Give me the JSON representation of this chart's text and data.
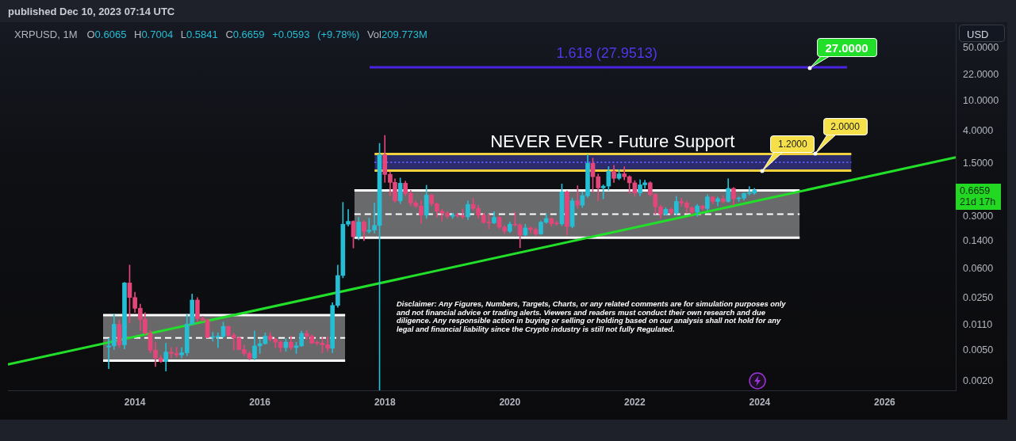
{
  "chart_data": {
    "type": "candlestick",
    "title": "XRPUSD, 1M",
    "subtitle": "published Dec 10, 2023 07:14 UTC",
    "ylabel": "USD",
    "log": true,
    "xlim": [
      "2011-12-20",
      "2027-02-20"
    ],
    "xticks": [
      "2014",
      "2016",
      "2018",
      "2020",
      "2022",
      "2024",
      "2026"
    ],
    "ylim": [
      0.0015,
      105
    ],
    "yticks": [
      {
        "value": 0.002,
        "label": "0.0020"
      },
      {
        "value": 0.005,
        "label": "0.0050"
      },
      {
        "value": 0.011,
        "label": "0.0110"
      },
      {
        "value": 0.025,
        "label": "0.0250"
      },
      {
        "value": 0.06,
        "label": "0.0600"
      },
      {
        "value": 0.14,
        "label": "0.1400"
      },
      {
        "value": 0.3,
        "label": "0.3000"
      },
      {
        "value": 1.5,
        "label": "1.5000"
      },
      {
        "value": 4,
        "label": "4.0000"
      },
      {
        "value": 10,
        "label": "10.0000"
      },
      {
        "value": 22,
        "label": "22.0000"
      },
      {
        "value": 50,
        "label": "50.0000"
      }
    ],
    "series": [
      {
        "type": "line",
        "x": [
          "2013-06-29",
          "2017-05-14"
        ],
        "values": [
          0.0074,
          0.0074
        ],
        "lower": [
          0.0037,
          0.0037
        ],
        "upper": [
          0.0148,
          0.0148
        ],
        "color": "#ffffff",
        "line_style": "dashed"
      },
      {
        "type": "line",
        "x": [
          "2013-06-29",
          "2017-05-14"
        ],
        "values": [
          0.0148,
          0.0148
        ],
        "color": "#ffffff"
      },
      {
        "type": "line",
        "x": [
          "2013-06-29",
          "2017-05-14"
        ],
        "values": [
          0.0037,
          0.0037
        ],
        "color": "#ffffff"
      },
      {
        "type": "line",
        "x": [
          "2017-07-07",
          "2024-08-22"
        ],
        "values": [
          0.32,
          0.32
        ],
        "lower": [
          0.156,
          0.156
        ],
        "upper": [
          0.66,
          0.66
        ],
        "color": "#ffffff",
        "line_style": "dashed"
      },
      {
        "type": "line",
        "x": [
          "2017-07-07",
          "2024-08-22"
        ],
        "values": [
          0.66,
          0.66
        ],
        "color": "#ffffff"
      },
      {
        "type": "line",
        "x": [
          "2017-07-07",
          "2024-08-22"
        ],
        "values": [
          0.156,
          0.156
        ],
        "color": "#ffffff"
      },
      {
        "type": "line",
        "x": [
          "2011-12-20",
          "2027-02-20"
        ],
        "values": [
          0.0033,
          1.8
        ],
        "color": "#22e02a"
      },
      {
        "type": "line",
        "x": [
          "2017-11-02",
          "2025-06-20"
        ],
        "values": [
          1.55,
          1.55
        ],
        "lower": [
          1.2,
          1.2
        ],
        "upper": [
          2,
          2
        ],
        "color": "#5b5bff",
        "line_style": "dotted"
      },
      {
        "type": "line",
        "x": [
          "2017-11-02",
          "2025-06-20"
        ],
        "values": [
          2,
          2
        ],
        "color": "#f0d03c"
      },
      {
        "type": "line",
        "x": [
          "2017-11-02",
          "2025-06-20"
        ],
        "values": [
          1.2,
          1.2
        ],
        "color": "#f0d03c"
      },
      {
        "type": "line",
        "x": [
          "2017-10-04",
          "2025-05-26"
        ],
        "values": [
          27.9513,
          27.9513
        ],
        "color": "#4a24e0"
      },
      {
        "x": [
          "2013-08",
          "2013-09",
          "2013-10",
          "2013-11",
          "2013-12",
          "2014-01",
          "2014-02",
          "2014-03",
          "2014-04",
          "2014-05",
          "2014-06",
          "2014-07",
          "2014-08",
          "2014-09",
          "2014-10",
          "2014-11",
          "2014-12",
          "2015-01",
          "2015-02",
          "2015-03",
          "2015-04",
          "2015-05",
          "2015-06",
          "2015-07",
          "2015-08",
          "2015-09",
          "2015-10",
          "2015-11",
          "2015-12",
          "2016-01",
          "2016-02",
          "2016-03",
          "2016-04",
          "2016-05",
          "2016-06",
          "2016-07",
          "2016-08",
          "2016-09",
          "2016-10",
          "2016-11",
          "2016-12",
          "2017-01",
          "2017-02",
          "2017-03",
          "2017-04",
          "2017-05",
          "2017-06",
          "2017-07",
          "2017-08",
          "2017-09",
          "2017-10",
          "2017-11",
          "2017-12",
          "2018-01",
          "2018-02",
          "2018-03",
          "2018-04",
          "2018-05",
          "2018-06",
          "2018-07",
          "2018-08",
          "2018-09",
          "2018-10",
          "2018-11",
          "2018-12",
          "2019-01",
          "2019-02",
          "2019-03",
          "2019-04",
          "2019-05",
          "2019-06",
          "2019-07",
          "2019-08",
          "2019-09",
          "2019-10",
          "2019-11",
          "2019-12",
          "2020-01",
          "2020-02",
          "2020-03",
          "2020-04",
          "2020-05",
          "2020-06",
          "2020-07",
          "2020-08",
          "2020-09",
          "2020-10",
          "2020-11",
          "2020-12",
          "2021-01",
          "2021-02",
          "2021-03",
          "2021-04",
          "2021-05",
          "2021-06",
          "2021-07",
          "2021-08",
          "2021-09",
          "2021-10",
          "2021-11",
          "2021-12",
          "2022-01",
          "2022-02",
          "2022-03",
          "2022-04",
          "2022-05",
          "2022-06",
          "2022-07",
          "2022-08",
          "2022-09",
          "2022-10",
          "2022-11",
          "2022-12",
          "2023-01",
          "2023-02",
          "2023-03",
          "2023-04",
          "2023-05",
          "2023-06",
          "2023-07",
          "2023-08",
          "2023-09",
          "2023-10",
          "2023-11",
          "2023-12"
        ],
        "ohlc": [
          [
            0.0056,
            0.0073,
            0.0029,
            0.0058
          ],
          [
            0.0058,
            0.0152,
            0.0052,
            0.0112
          ],
          [
            0.0112,
            0.0128,
            0.0055,
            0.006
          ],
          [
            0.006,
            0.0401,
            0.0053,
            0.0394
          ],
          [
            0.0394,
            0.068,
            0.0116,
            0.0253
          ],
          [
            0.0253,
            0.0297,
            0.016,
            0.0182
          ],
          [
            0.0182,
            0.0207,
            0.0093,
            0.013
          ],
          [
            0.013,
            0.016,
            0.0082,
            0.0086
          ],
          [
            0.0086,
            0.0093,
            0.0047,
            0.0051
          ],
          [
            0.0051,
            0.0065,
            0.0031,
            0.004
          ],
          [
            0.004,
            0.0043,
            0.0035,
            0.0036
          ],
          [
            0.0036,
            0.0063,
            0.0027,
            0.0048
          ],
          [
            0.0048,
            0.0055,
            0.004,
            0.0046
          ],
          [
            0.0046,
            0.0056,
            0.0041,
            0.0044
          ],
          [
            0.0044,
            0.0055,
            0.004,
            0.0047
          ],
          [
            0.0047,
            0.0152,
            0.0043,
            0.0113
          ],
          [
            0.0113,
            0.0281,
            0.011,
            0.0234
          ],
          [
            0.0234,
            0.0252,
            0.012,
            0.0133
          ],
          [
            0.0133,
            0.0143,
            0.0122,
            0.0128
          ],
          [
            0.0128,
            0.013,
            0.0074,
            0.0075
          ],
          [
            0.0075,
            0.0088,
            0.0067,
            0.0076
          ],
          [
            0.0076,
            0.0086,
            0.0055,
            0.0078
          ],
          [
            0.0078,
            0.012,
            0.0074,
            0.0105
          ],
          [
            0.0105,
            0.0107,
            0.0076,
            0.008
          ],
          [
            0.008,
            0.0086,
            0.0051,
            0.0074
          ],
          [
            0.0074,
            0.0076,
            0.0051,
            0.0052
          ],
          [
            0.0052,
            0.006,
            0.0043,
            0.0046
          ],
          [
            0.0046,
            0.0049,
            0.0038,
            0.004
          ],
          [
            0.004,
            0.0091,
            0.0038,
            0.0058
          ],
          [
            0.0058,
            0.0071,
            0.0046,
            0.0062
          ],
          [
            0.0062,
            0.0086,
            0.0061,
            0.0078
          ],
          [
            0.0078,
            0.0087,
            0.0067,
            0.0071
          ],
          [
            0.0071,
            0.0073,
            0.0055,
            0.0065
          ],
          [
            0.0065,
            0.0068,
            0.0048,
            0.0055
          ],
          [
            0.0055,
            0.0073,
            0.0049,
            0.0065
          ],
          [
            0.0065,
            0.0079,
            0.0052,
            0.0055
          ],
          [
            0.0055,
            0.0065,
            0.0046,
            0.0058
          ],
          [
            0.0058,
            0.0091,
            0.0057,
            0.0085
          ],
          [
            0.0085,
            0.0093,
            0.0071,
            0.0078
          ],
          [
            0.0078,
            0.0082,
            0.0062,
            0.0063
          ],
          [
            0.0064,
            0.0067,
            0.0059,
            0.0063
          ],
          [
            0.0063,
            0.0076,
            0.0047,
            0.006
          ],
          [
            0.006,
            0.0076,
            0.0049,
            0.0054
          ],
          [
            0.0054,
            0.0216,
            0.0047,
            0.0199
          ],
          [
            0.0199,
            0.068,
            0.0187,
            0.0494
          ],
          [
            0.0494,
            0.458,
            0.046,
            0.235
          ],
          [
            0.235,
            0.369,
            0.222,
            0.257
          ],
          [
            0.257,
            0.262,
            0.114,
            0.161
          ],
          [
            0.161,
            0.29,
            0.146,
            0.251
          ],
          [
            0.251,
            0.262,
            0.143,
            0.189
          ],
          [
            0.189,
            0.283,
            0.179,
            0.197
          ],
          [
            0.197,
            0.45,
            0.18,
            0.227
          ],
          [
            0.227,
            2.76,
            0.0015,
            1.95
          ],
          [
            1.95,
            3.51,
            0.84,
            1.07
          ],
          [
            1.07,
            1.16,
            0.56,
            0.84
          ],
          [
            0.84,
            0.94,
            0.46,
            0.48
          ],
          [
            0.48,
            0.96,
            0.44,
            0.82
          ],
          [
            0.82,
            0.87,
            0.56,
            0.6
          ],
          [
            0.6,
            0.66,
            0.41,
            0.45
          ],
          [
            0.45,
            0.48,
            0.39,
            0.41
          ],
          [
            0.41,
            0.48,
            0.24,
            0.31
          ],
          [
            0.31,
            0.77,
            0.28,
            0.57
          ],
          [
            0.57,
            0.59,
            0.41,
            0.44
          ],
          [
            0.44,
            0.45,
            0.29,
            0.35
          ],
          [
            0.35,
            0.37,
            0.26,
            0.33
          ],
          [
            0.33,
            0.35,
            0.28,
            0.3
          ],
          [
            0.3,
            0.33,
            0.28,
            0.31
          ],
          [
            0.31,
            0.33,
            0.29,
            0.305
          ],
          [
            0.305,
            0.375,
            0.28,
            0.295
          ],
          [
            0.295,
            0.48,
            0.27,
            0.43
          ],
          [
            0.43,
            0.52,
            0.36,
            0.38
          ],
          [
            0.38,
            0.42,
            0.28,
            0.31
          ],
          [
            0.31,
            0.33,
            0.24,
            0.25
          ],
          [
            0.25,
            0.32,
            0.205,
            0.245
          ],
          [
            0.245,
            0.346,
            0.24,
            0.29
          ],
          [
            0.29,
            0.3,
            0.205,
            0.215
          ],
          [
            0.215,
            0.228,
            0.176,
            0.19
          ],
          [
            0.19,
            0.251,
            0.182,
            0.235
          ],
          [
            0.235,
            0.34,
            0.22,
            0.23
          ],
          [
            0.23,
            0.24,
            0.115,
            0.17
          ],
          [
            0.17,
            0.235,
            0.165,
            0.21
          ],
          [
            0.21,
            0.22,
            0.18,
            0.2
          ],
          [
            0.2,
            0.21,
            0.165,
            0.175
          ],
          [
            0.175,
            0.26,
            0.172,
            0.25
          ],
          [
            0.25,
            0.32,
            0.24,
            0.28
          ],
          [
            0.28,
            0.285,
            0.22,
            0.24
          ],
          [
            0.24,
            0.26,
            0.228,
            0.238
          ],
          [
            0.238,
            0.8,
            0.225,
            0.63
          ],
          [
            0.63,
            0.65,
            0.17,
            0.22
          ],
          [
            0.22,
            0.52,
            0.21,
            0.48
          ],
          [
            0.48,
            0.76,
            0.38,
            0.42
          ],
          [
            0.42,
            0.63,
            0.39,
            0.56
          ],
          [
            0.56,
            1.96,
            0.53,
            1.5
          ],
          [
            1.5,
            1.76,
            0.62,
            1
          ],
          [
            1,
            1.08,
            0.48,
            0.71
          ],
          [
            0.71,
            0.78,
            0.51,
            0.75
          ],
          [
            0.75,
            1.36,
            0.66,
            1.18
          ],
          [
            1.18,
            1.41,
            0.84,
            0.95
          ],
          [
            0.95,
            1.24,
            0.91,
            1.09
          ],
          [
            1.09,
            1.35,
            0.91,
            1
          ],
          [
            1,
            1.03,
            0.6,
            0.83
          ],
          [
            0.83,
            0.89,
            0.55,
            0.61
          ],
          [
            0.61,
            0.91,
            0.56,
            0.78
          ],
          [
            0.78,
            0.9,
            0.7,
            0.83
          ],
          [
            0.83,
            0.86,
            0.55,
            0.58
          ],
          [
            0.58,
            0.6,
            0.32,
            0.4
          ],
          [
            0.4,
            0.42,
            0.28,
            0.32
          ],
          [
            0.32,
            0.39,
            0.31,
            0.37
          ],
          [
            0.37,
            0.39,
            0.31,
            0.33
          ],
          [
            0.33,
            0.55,
            0.31,
            0.47
          ],
          [
            0.47,
            0.52,
            0.41,
            0.45
          ],
          [
            0.45,
            0.48,
            0.33,
            0.39
          ],
          [
            0.39,
            0.4,
            0.32,
            0.34
          ],
          [
            0.34,
            0.43,
            0.3,
            0.41
          ],
          [
            0.41,
            0.42,
            0.36,
            0.38
          ],
          [
            0.38,
            0.58,
            0.36,
            0.54
          ],
          [
            0.54,
            0.55,
            0.44,
            0.47
          ],
          [
            0.47,
            0.54,
            0.41,
            0.51
          ],
          [
            0.51,
            0.56,
            0.45,
            0.47
          ],
          [
            0.47,
            0.94,
            0.46,
            0.7
          ],
          [
            0.7,
            0.72,
            0.42,
            0.51
          ],
          [
            0.51,
            0.54,
            0.47,
            0.52
          ],
          [
            0.52,
            0.61,
            0.49,
            0.6
          ],
          [
            0.6,
            0.74,
            0.57,
            0.6065
          ],
          [
            0.6065,
            0.7004,
            0.5841,
            0.6659
          ]
        ],
        "colors": [
          "#26bed4",
          "#26bed4",
          "#e5467a",
          "#26bed4",
          "#e5467a",
          "#e5467a",
          "#e5467a",
          "#e5467a",
          "#e5467a",
          "#e5467a",
          "#e5467a",
          "#26bed4",
          "#e5467a",
          "#e5467a",
          "#26bed4",
          "#26bed4",
          "#26bed4",
          "#e5467a",
          "#e5467a",
          "#e5467a",
          "#26bed4",
          "#26bed4",
          "#26bed4",
          "#e5467a",
          "#e5467a",
          "#e5467a",
          "#e5467a",
          "#e5467a",
          "#26bed4",
          "#26bed4",
          "#26bed4",
          "#e5467a",
          "#e5467a",
          "#e5467a",
          "#26bed4",
          "#e5467a",
          "#26bed4",
          "#26bed4",
          "#e5467a",
          "#e5467a",
          "#e5467a",
          "#e5467a",
          "#e5467a",
          "#26bed4",
          "#26bed4",
          "#26bed4",
          "#26bed4",
          "#e5467a",
          "#26bed4",
          "#e5467a",
          "#26bed4",
          "#26bed4",
          "#26bed4",
          "#e5467a",
          "#e5467a",
          "#e5467a",
          "#26bed4",
          "#e5467a",
          "#e5467a",
          "#e5467a",
          "#e5467a",
          "#26bed4",
          "#e5467a",
          "#e5467a",
          "#e5467a",
          "#e5467a",
          "#26bed4",
          "#e5467a",
          "#e5467a",
          "#26bed4",
          "#e5467a",
          "#e5467a",
          "#e5467a",
          "#e5467a",
          "#26bed4",
          "#e5467a",
          "#e5467a",
          "#26bed4",
          "#e5467a",
          "#e5467a",
          "#26bed4",
          "#e5467a",
          "#e5467a",
          "#26bed4",
          "#26bed4",
          "#e5467a",
          "#e5467a",
          "#26bed4",
          "#e5467a",
          "#26bed4",
          "#e5467a",
          "#26bed4",
          "#26bed4",
          "#e5467a",
          "#e5467a",
          "#26bed4",
          "#26bed4",
          "#e5467a",
          "#26bed4",
          "#e5467a",
          "#e5467a",
          "#e5467a",
          "#26bed4",
          "#26bed4",
          "#e5467a",
          "#e5467a",
          "#e5467a",
          "#26bed4",
          "#e5467a",
          "#26bed4",
          "#e5467a",
          "#e5467a",
          "#e5467a",
          "#26bed4",
          "#e5467a",
          "#26bed4",
          "#e5467a",
          "#26bed4",
          "#e5467a",
          "#26bed4",
          "#e5467a",
          "#26bed4",
          "#26bed4",
          "#26bed4",
          "#26bed4"
        ]
      }
    ],
    "annotations": [
      "O0.6065 H0.7004 L0.5841 C0.6659 +0.0593 (+9.78%) Vol209.773M",
      {
        "text": "1.618 (27.9513)",
        "x": "2021-07-22",
        "y": 27.9513
      },
      {
        "text": "NEVER EVER - Future Support",
        "x": "2021-08-24",
        "y": 2
      },
      {
        "text": "27.0000",
        "x": "2024-10-18",
        "y": 27
      },
      {
        "text": "2.0000",
        "x": "2024-11-20",
        "y": 2
      },
      {
        "text": "1.2000",
        "x": "2024-01-17",
        "y": 1.2
      },
      "0.6659",
      "21d 17h",
      "Disclaimer: Any Figures, Numbers, Targets, Charts, or any related comments are for simulation purposes only and not financial advice or trading alerts. Viewers and readers must conduct their own research and due diligence. Any responsible action in buying or selling or holding based on our analysis shall not hold for any legal and financial liability since the Crypto industry is still not fully Regulated."
    ]
  }
}
